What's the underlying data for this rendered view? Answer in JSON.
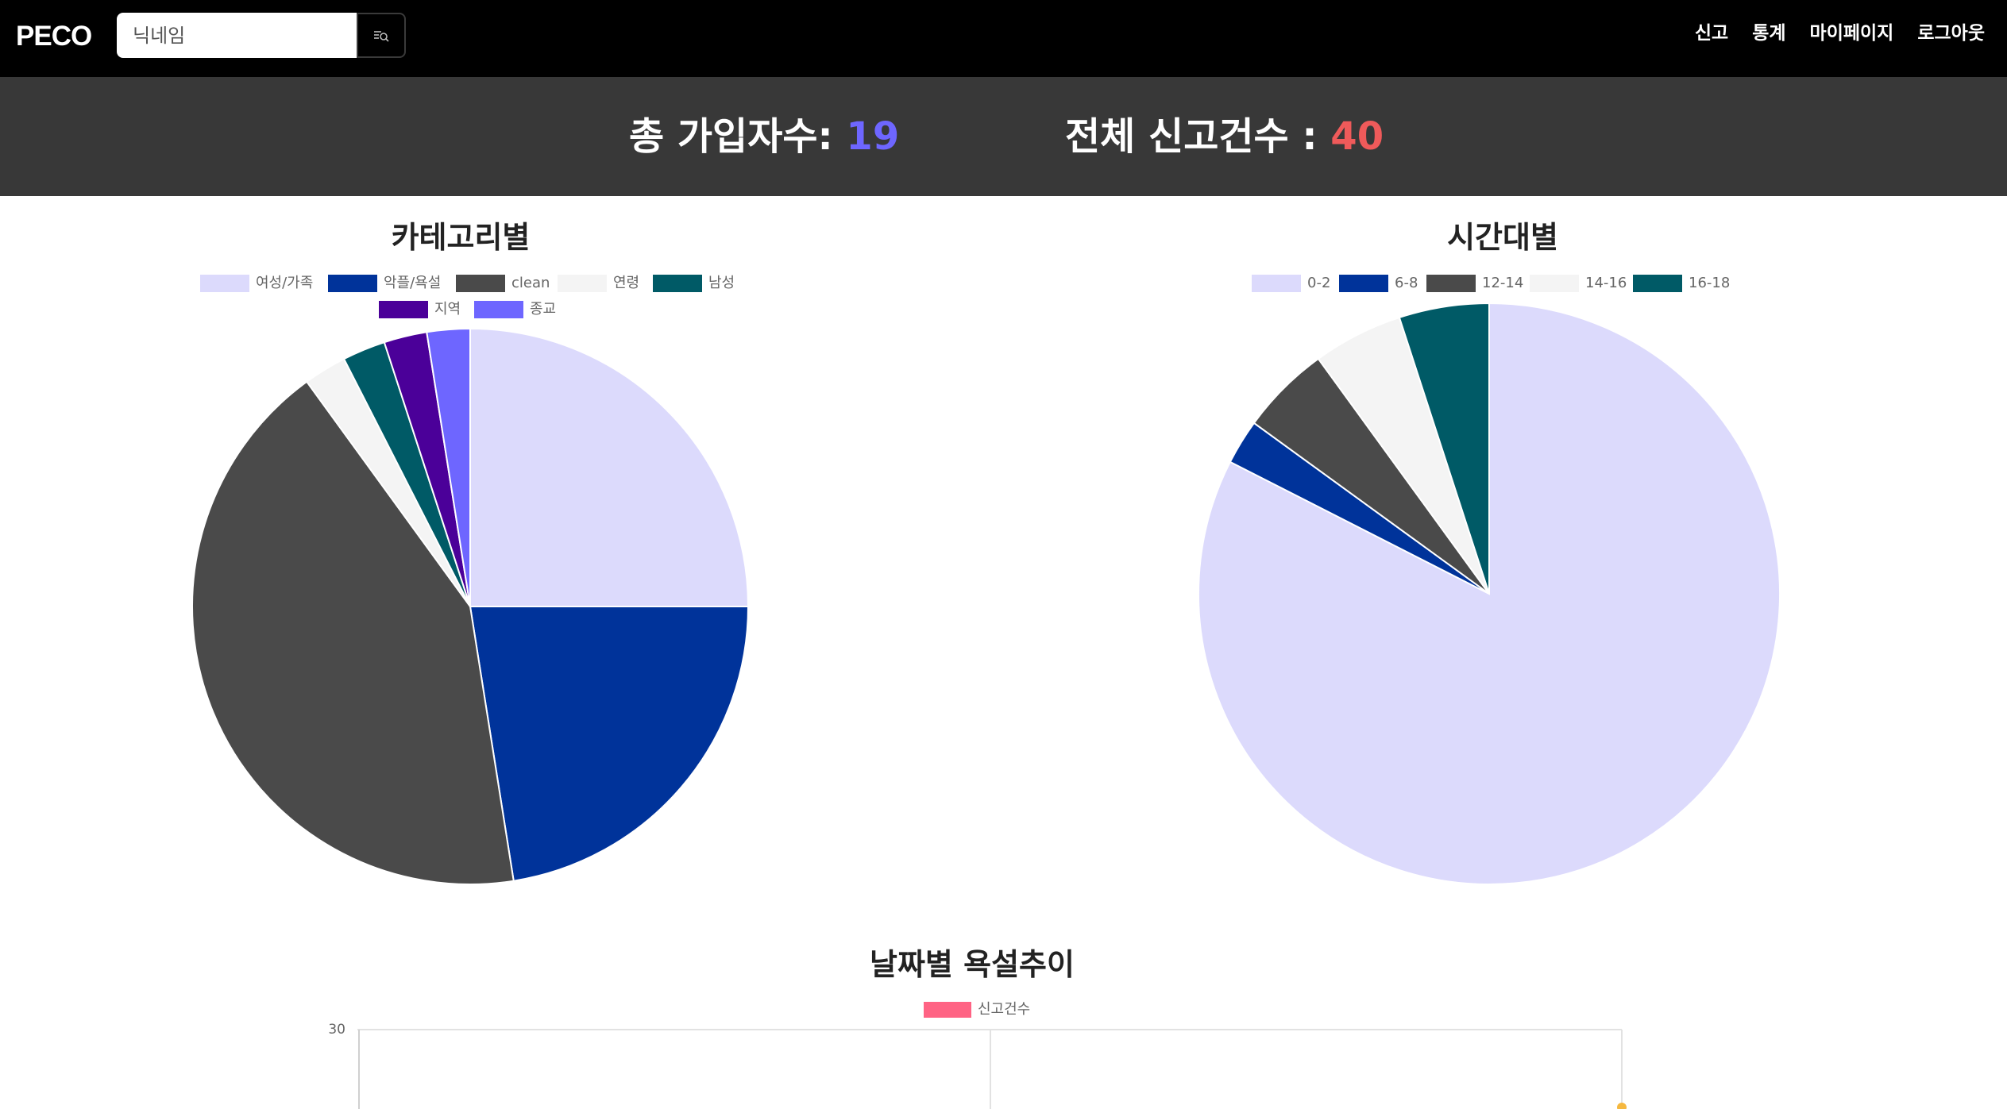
{
  "app": {
    "brand": "PECO"
  },
  "search": {
    "placeholder": "닉네임",
    "value": ""
  },
  "icons": {
    "search_button": "search-list-icon"
  },
  "nav": {
    "items": [
      {
        "label": "신고"
      },
      {
        "label": "통계"
      },
      {
        "label": "마이페이지"
      },
      {
        "label": "로그아웃"
      }
    ]
  },
  "stats": {
    "members_label": "총 가입자수: ",
    "members_value": "19",
    "reports_label": "전체 신고건수 : ",
    "reports_value": "40"
  },
  "colors": {
    "members_accent": "#6e66ff",
    "reports_accent": "#ef5a5a",
    "navbar_bg": "#000000",
    "stats_bg": "#383838"
  },
  "chart_data": [
    {
      "type": "pie",
      "title": "카테고리별",
      "legend_position": "top",
      "categories": [
        "여성/가족",
        "악플/욕설",
        "clean",
        "연령",
        "남성",
        "지역",
        "종교"
      ],
      "values": [
        10,
        9,
        17,
        1,
        1,
        1,
        1
      ],
      "colors": [
        "#dcdafc",
        "#00339a",
        "#4a4a4a",
        "#f4f4f4",
        "#005a66",
        "#4b0099",
        "#6e66ff"
      ]
    },
    {
      "type": "pie",
      "title": "시간대별",
      "legend_position": "top",
      "categories": [
        "0-2",
        "6-8",
        "12-14",
        "14-16",
        "16-18"
      ],
      "values": [
        33,
        1,
        2,
        2,
        2
      ],
      "colors": [
        "#dcdafc",
        "#00339a",
        "#4a4a4a",
        "#f4f4f4",
        "#005a66"
      ]
    },
    {
      "type": "line",
      "title": "날짜별 욕설추이",
      "legend_position": "top",
      "series": [
        {
          "name": "신고건수",
          "color": "#ff6384"
        }
      ],
      "ylim": [
        0,
        30
      ],
      "y_ticks": [
        "30"
      ],
      "grid": true
    }
  ]
}
